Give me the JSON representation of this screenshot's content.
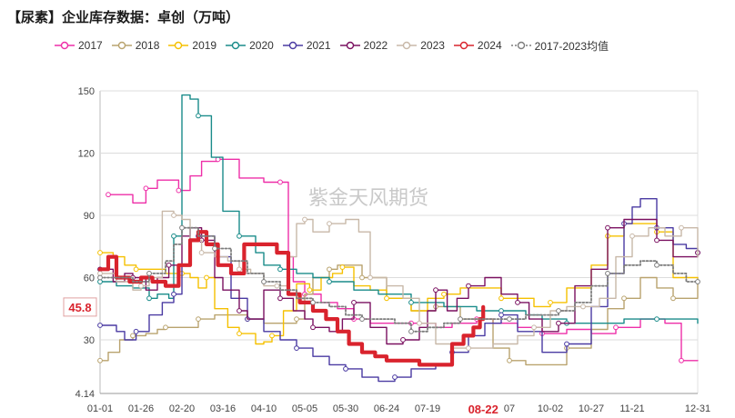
{
  "title": "【尿素】企业库存数据：卓创（万吨）",
  "watermark": "紫金天风期货",
  "chart_data": {
    "type": "line",
    "title": "【尿素】企业库存数据：卓创（万吨）",
    "ylim": [
      4.14,
      150
    ],
    "yticks": [
      4.14,
      30,
      60,
      90,
      120,
      150
    ],
    "ytick_labels": [
      "4.14",
      "30",
      "60",
      "90",
      "120",
      "150"
    ],
    "x_days": [
      0,
      365
    ],
    "xticks": [
      {
        "day": 0,
        "label": "01-01"
      },
      {
        "day": 25,
        "label": "01-26"
      },
      {
        "day": 50,
        "label": "02-20"
      },
      {
        "day": 75,
        "label": "03-16"
      },
      {
        "day": 100,
        "label": "04-10"
      },
      {
        "day": 125,
        "label": "05-05"
      },
      {
        "day": 150,
        "label": "05-30"
      },
      {
        "day": 175,
        "label": "06-24"
      },
      {
        "day": 200,
        "label": "07-19"
      },
      {
        "day": 234,
        "label": "08-22",
        "highlight": true
      },
      {
        "day": 250,
        "label": "07"
      },
      {
        "day": 275,
        "label": "10-02"
      },
      {
        "day": 300,
        "label": "10-27"
      },
      {
        "day": 325,
        "label": "11-21"
      },
      {
        "day": 365,
        "label": "12-31"
      }
    ],
    "y_highlight": {
      "value": 45.8,
      "label": "45.8"
    },
    "series": [
      {
        "name": "2017",
        "color": "#ee2fa8",
        "width": 1.4,
        "x": [
          5,
          12,
          20,
          28,
          35,
          42,
          48,
          55,
          62,
          72,
          85,
          100,
          110,
          115,
          118,
          125,
          135,
          145,
          155,
          165,
          175,
          190,
          205,
          215,
          230,
          240,
          255,
          270,
          285,
          300,
          315,
          330,
          345,
          355,
          365
        ],
        "y": [
          100,
          100,
          96,
          103,
          107,
          107,
          102,
          109,
          116,
          117,
          108,
          106,
          106,
          70,
          58,
          52,
          48,
          45,
          40,
          38,
          38,
          38,
          36,
          38,
          40,
          38,
          36,
          33,
          35,
          33,
          36,
          40,
          38,
          20,
          20
        ]
      },
      {
        "name": "2018",
        "color": "#b9a36e",
        "width": 1.4,
        "x": [
          0,
          5,
          12,
          20,
          28,
          35,
          40,
          45,
          50,
          60,
          70,
          80,
          90,
          100,
          110,
          120,
          125,
          130,
          140,
          145,
          150,
          160,
          175,
          190,
          205,
          220,
          240,
          250,
          260,
          270,
          285,
          300,
          310,
          320,
          330,
          340,
          350,
          360,
          365
        ],
        "y": [
          20,
          24,
          30,
          32,
          33,
          35,
          36,
          36,
          36,
          40,
          42,
          42,
          40,
          38,
          38,
          40,
          52,
          60,
          64,
          66,
          66,
          60,
          50,
          44,
          46,
          40,
          26,
          20,
          18,
          18,
          26,
          35,
          45,
          50,
          60,
          55,
          50,
          50,
          60
        ]
      },
      {
        "name": "2019",
        "color": "#f5c000",
        "width": 1.4,
        "x": [
          0,
          8,
          15,
          22,
          30,
          40,
          50,
          55,
          60,
          65,
          70,
          78,
          85,
          95,
          100,
          105,
          112,
          120,
          128,
          135,
          142,
          148,
          155,
          165,
          175,
          190,
          200,
          210,
          220,
          235,
          245,
          255,
          265,
          275,
          285,
          300,
          310,
          320,
          330,
          340,
          350,
          365
        ],
        "y": [
          72,
          70,
          66,
          64,
          64,
          62,
          62,
          60,
          55,
          60,
          45,
          36,
          33,
          28,
          29,
          32,
          44,
          57,
          54,
          60,
          62,
          65,
          56,
          54,
          50,
          44,
          50,
          52,
          55,
          55,
          50,
          50,
          46,
          48,
          55,
          66,
          80,
          86,
          86,
          82,
          60,
          60
        ]
      },
      {
        "name": "2020",
        "color": "#1a8c8a",
        "width": 1.4,
        "x": [
          0,
          10,
          20,
          30,
          35,
          42,
          45,
          50,
          55,
          60,
          68,
          75,
          85,
          95,
          100,
          110,
          120,
          130,
          140,
          155,
          170,
          190,
          210,
          230,
          245,
          260,
          270,
          285,
          300,
          320,
          340,
          365
        ],
        "y": [
          58,
          56,
          55,
          50,
          52,
          50,
          80,
          148,
          146,
          138,
          118,
          92,
          80,
          72,
          66,
          64,
          62,
          60,
          58,
          54,
          52,
          48,
          46,
          44,
          44,
          42,
          40,
          38,
          38,
          40,
          40,
          38
        ]
      },
      {
        "name": "2021",
        "color": "#4a3aa2",
        "width": 1.4,
        "x": [
          0,
          10,
          15,
          22,
          30,
          38,
          45,
          50,
          55,
          60,
          70,
          80,
          90,
          100,
          110,
          120,
          130,
          140,
          150,
          160,
          170,
          180,
          190,
          205,
          215,
          225,
          235,
          245,
          255,
          270,
          285,
          300,
          310,
          320,
          325,
          330,
          340,
          350,
          358,
          365
        ],
        "y": [
          37,
          34,
          30,
          34,
          42,
          48,
          52,
          66,
          84,
          80,
          70,
          50,
          40,
          34,
          30,
          26,
          22,
          18,
          16,
          12,
          10,
          12,
          16,
          18,
          24,
          32,
          38,
          42,
          34,
          24,
          28,
          46,
          62,
          86,
          94,
          98,
          84,
          76,
          74,
          72
        ]
      },
      {
        "name": "2022",
        "color": "#7a1060",
        "width": 1.4,
        "x": [
          0,
          8,
          15,
          20,
          28,
          35,
          42,
          50,
          55,
          62,
          70,
          75,
          85,
          90,
          100,
          110,
          118,
          125,
          130,
          140,
          148,
          155,
          165,
          175,
          185,
          195,
          200,
          205,
          212,
          218,
          225,
          235,
          245,
          255,
          262,
          270,
          280,
          290,
          300,
          310,
          320,
          330,
          340,
          350,
          358,
          365
        ],
        "y": [
          64,
          58,
          62,
          60,
          54,
          60,
          66,
          80,
          84,
          78,
          60,
          54,
          44,
          40,
          54,
          50,
          44,
          40,
          36,
          34,
          40,
          48,
          36,
          28,
          30,
          36,
          44,
          54,
          44,
          50,
          56,
          60,
          52,
          48,
          40,
          34,
          38,
          56,
          64,
          84,
          88,
          88,
          78,
          70,
          70,
          72
        ]
      },
      {
        "name": "2023",
        "color": "#c8b8a8",
        "width": 1.4,
        "x": [
          0,
          10,
          20,
          25,
          30,
          38,
          45,
          50,
          55,
          62,
          70,
          78,
          85,
          92,
          100,
          108,
          115,
          120,
          125,
          130,
          135,
          140,
          150,
          158,
          165,
          175,
          185,
          195,
          205,
          215,
          225,
          240,
          255,
          265,
          275,
          285,
          295,
          305,
          315,
          325,
          335,
          345,
          355,
          365
        ],
        "y": [
          62,
          58,
          54,
          56,
          60,
          92,
          90,
          88,
          78,
          72,
          70,
          68,
          64,
          62,
          56,
          56,
          70,
          86,
          88,
          82,
          82,
          86,
          88,
          82,
          60,
          56,
          50,
          38,
          28,
          26,
          26,
          28,
          32,
          36,
          44,
          46,
          46,
          50,
          70,
          80,
          84,
          80,
          84,
          70
        ]
      },
      {
        "name": "2024",
        "color": "#d9232d",
        "width": 4.2,
        "x": [
          0,
          5,
          10,
          18,
          25,
          32,
          40,
          48,
          55,
          60,
          65,
          72,
          80,
          88,
          95,
          100,
          108,
          115,
          122,
          130,
          138,
          145,
          152,
          160,
          168,
          175,
          185,
          195,
          205,
          215,
          222,
          228,
          232,
          234
        ],
        "y": [
          64,
          70,
          60,
          58,
          60,
          58,
          56,
          66,
          78,
          82,
          76,
          66,
          62,
          76,
          76,
          76,
          72,
          52,
          48,
          44,
          40,
          34,
          28,
          24,
          22,
          20,
          20,
          18,
          18,
          28,
          32,
          36,
          40,
          45.8
        ]
      },
      {
        "name": "2017-2023均值",
        "color": "#7d7d7d",
        "width": 1.8,
        "dash": "2,2",
        "x": [
          0,
          10,
          20,
          30,
          40,
          45,
          50,
          55,
          60,
          70,
          80,
          90,
          100,
          110,
          120,
          130,
          140,
          150,
          160,
          170,
          180,
          190,
          200,
          210,
          220,
          230,
          240,
          250,
          260,
          270,
          280,
          290,
          300,
          310,
          320,
          330,
          340,
          350,
          358,
          365
        ],
        "y": [
          60,
          60,
          58,
          62,
          68,
          76,
          84,
          84,
          80,
          74,
          68,
          62,
          58,
          54,
          50,
          48,
          46,
          42,
          40,
          40,
          38,
          34,
          36,
          38,
          40,
          40,
          40,
          40,
          42,
          42,
          44,
          48,
          56,
          62,
          66,
          68,
          66,
          62,
          58,
          58
        ]
      }
    ]
  }
}
